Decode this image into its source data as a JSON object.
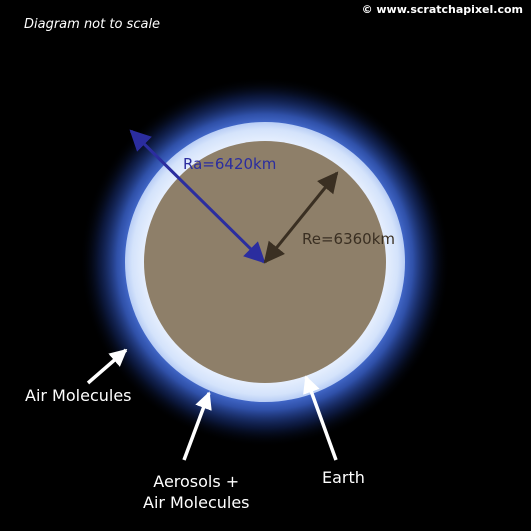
{
  "note": "Diagram not to scale",
  "copyright": "© www.scratchapixel.com",
  "atmosphere_radius": {
    "label": "Ra=6420km",
    "value_km": 6420,
    "color": "#2b2d9f"
  },
  "earth_radius": {
    "label": "Re=6360km",
    "value_km": 6360,
    "color": "#3a2f22"
  },
  "colors": {
    "background": "#000000",
    "earth": "#8e7f69",
    "atmosphere": "#d8e6fb",
    "glow": "#3f6be0"
  },
  "callouts": {
    "air_molecules": "Air Molecules",
    "aerosols_line1": "Aerosols +",
    "aerosols_line2": "Air Molecules",
    "earth": "Earth"
  }
}
